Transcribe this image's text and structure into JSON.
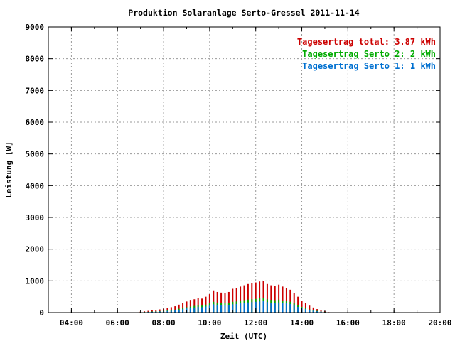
{
  "chart_data": {
    "type": "bar",
    "stacked": true,
    "title": "Produktion Solaranlage Serto-Gressel 2011-11-14",
    "xlabel": "Zeit (UTC)",
    "ylabel": "Leistung [W]",
    "xlim": [
      "03:00",
      "20:00"
    ],
    "ylim": [
      0,
      9000
    ],
    "yticks": [
      0,
      1000,
      2000,
      3000,
      4000,
      5000,
      6000,
      7000,
      8000,
      9000
    ],
    "xticks": [
      "04:00",
      "06:00",
      "08:00",
      "10:00",
      "12:00",
      "14:00",
      "16:00",
      "18:00",
      "20:00"
    ],
    "grid": true,
    "legend_position": "top-right",
    "legend": [
      {
        "label": "Tagesertrag total:",
        "value": "3.87 kWh",
        "color": "#cc0000"
      },
      {
        "label": "Tagesertrag Serto 2:",
        "value": "2 kWh",
        "color": "#00aa00"
      },
      {
        "label": "Tagesertrag Serto 1:",
        "value": "1 kWh",
        "color": "#0070d0"
      }
    ],
    "series": [
      {
        "name": "Serto 1",
        "color": "#0070d0",
        "x": [
          "07:00",
          "07:10",
          "07:20",
          "07:30",
          "07:40",
          "07:50",
          "08:00",
          "08:10",
          "08:20",
          "08:30",
          "08:40",
          "08:50",
          "09:00",
          "09:10",
          "09:20",
          "09:30",
          "09:40",
          "09:50",
          "10:00",
          "10:10",
          "10:20",
          "10:30",
          "10:40",
          "10:50",
          "11:00",
          "11:10",
          "11:20",
          "11:30",
          "11:40",
          "11:50",
          "12:00",
          "12:10",
          "12:20",
          "12:30",
          "12:40",
          "12:50",
          "13:00",
          "13:10",
          "13:20",
          "13:30",
          "13:40",
          "13:50",
          "14:00",
          "14:10",
          "14:20",
          "14:30",
          "14:40",
          "14:50",
          "15:00",
          "15:10"
        ],
        "values": [
          10,
          15,
          20,
          25,
          30,
          35,
          40,
          50,
          60,
          70,
          90,
          110,
          130,
          150,
          160,
          180,
          170,
          190,
          220,
          260,
          240,
          230,
          220,
          240,
          260,
          270,
          290,
          300,
          320,
          330,
          340,
          350,
          360,
          330,
          310,
          300,
          320,
          300,
          290,
          270,
          230,
          180,
          140,
          110,
          80,
          60,
          40,
          30,
          15,
          5
        ]
      },
      {
        "name": "Serto 2",
        "color": "#00aa00",
        "x": [
          "07:00",
          "07:10",
          "07:20",
          "07:30",
          "07:40",
          "07:50",
          "08:00",
          "08:10",
          "08:20",
          "08:30",
          "08:40",
          "08:50",
          "09:00",
          "09:10",
          "09:20",
          "09:30",
          "09:40",
          "09:50",
          "10:00",
          "10:10",
          "10:20",
          "10:30",
          "10:40",
          "10:50",
          "11:00",
          "11:10",
          "11:20",
          "11:30",
          "11:40",
          "11:50",
          "12:00",
          "12:10",
          "12:20",
          "12:30",
          "12:40",
          "12:50",
          "13:00",
          "13:10",
          "13:20",
          "13:30",
          "13:40",
          "13:50",
          "14:00",
          "14:10",
          "14:20",
          "14:30",
          "14:40",
          "14:50",
          "15:00",
          "15:10"
        ],
        "values": [
          15,
          20,
          25,
          35,
          40,
          45,
          55,
          65,
          80,
          95,
          120,
          145,
          170,
          190,
          210,
          230,
          220,
          250,
          290,
          340,
          310,
          300,
          290,
          310,
          340,
          350,
          370,
          390,
          410,
          420,
          430,
          450,
          460,
          420,
          400,
          390,
          410,
          380,
          370,
          340,
          290,
          230,
          180,
          140,
          100,
          75,
          55,
          35,
          20,
          8
        ]
      },
      {
        "name": "total",
        "color": "#cc0000",
        "x": [
          "07:00",
          "07:10",
          "07:20",
          "07:30",
          "07:40",
          "07:50",
          "08:00",
          "08:10",
          "08:20",
          "08:30",
          "08:40",
          "08:50",
          "09:00",
          "09:10",
          "09:20",
          "09:30",
          "09:40",
          "09:50",
          "10:00",
          "10:10",
          "10:20",
          "10:30",
          "10:40",
          "10:50",
          "11:00",
          "11:10",
          "11:20",
          "11:30",
          "11:40",
          "11:50",
          "12:00",
          "12:10",
          "12:20",
          "12:30",
          "12:40",
          "12:50",
          "13:00",
          "13:10",
          "13:20",
          "13:30",
          "13:40",
          "13:50",
          "14:00",
          "14:10",
          "14:20",
          "14:30",
          "14:40",
          "14:50",
          "15:00",
          "15:10"
        ],
        "values": [
          30,
          40,
          55,
          70,
          85,
          100,
          120,
          140,
          170,
          200,
          250,
          300,
          350,
          400,
          420,
          460,
          440,
          500,
          580,
          700,
          650,
          630,
          610,
          650,
          750,
          780,
          820,
          860,
          900,
          920,
          950,
          980,
          1000,
          900,
          860,
          840,
          880,
          820,
          780,
          720,
          620,
          500,
          380,
          300,
          220,
          160,
          110,
          70,
          40,
          15
        ]
      }
    ]
  }
}
